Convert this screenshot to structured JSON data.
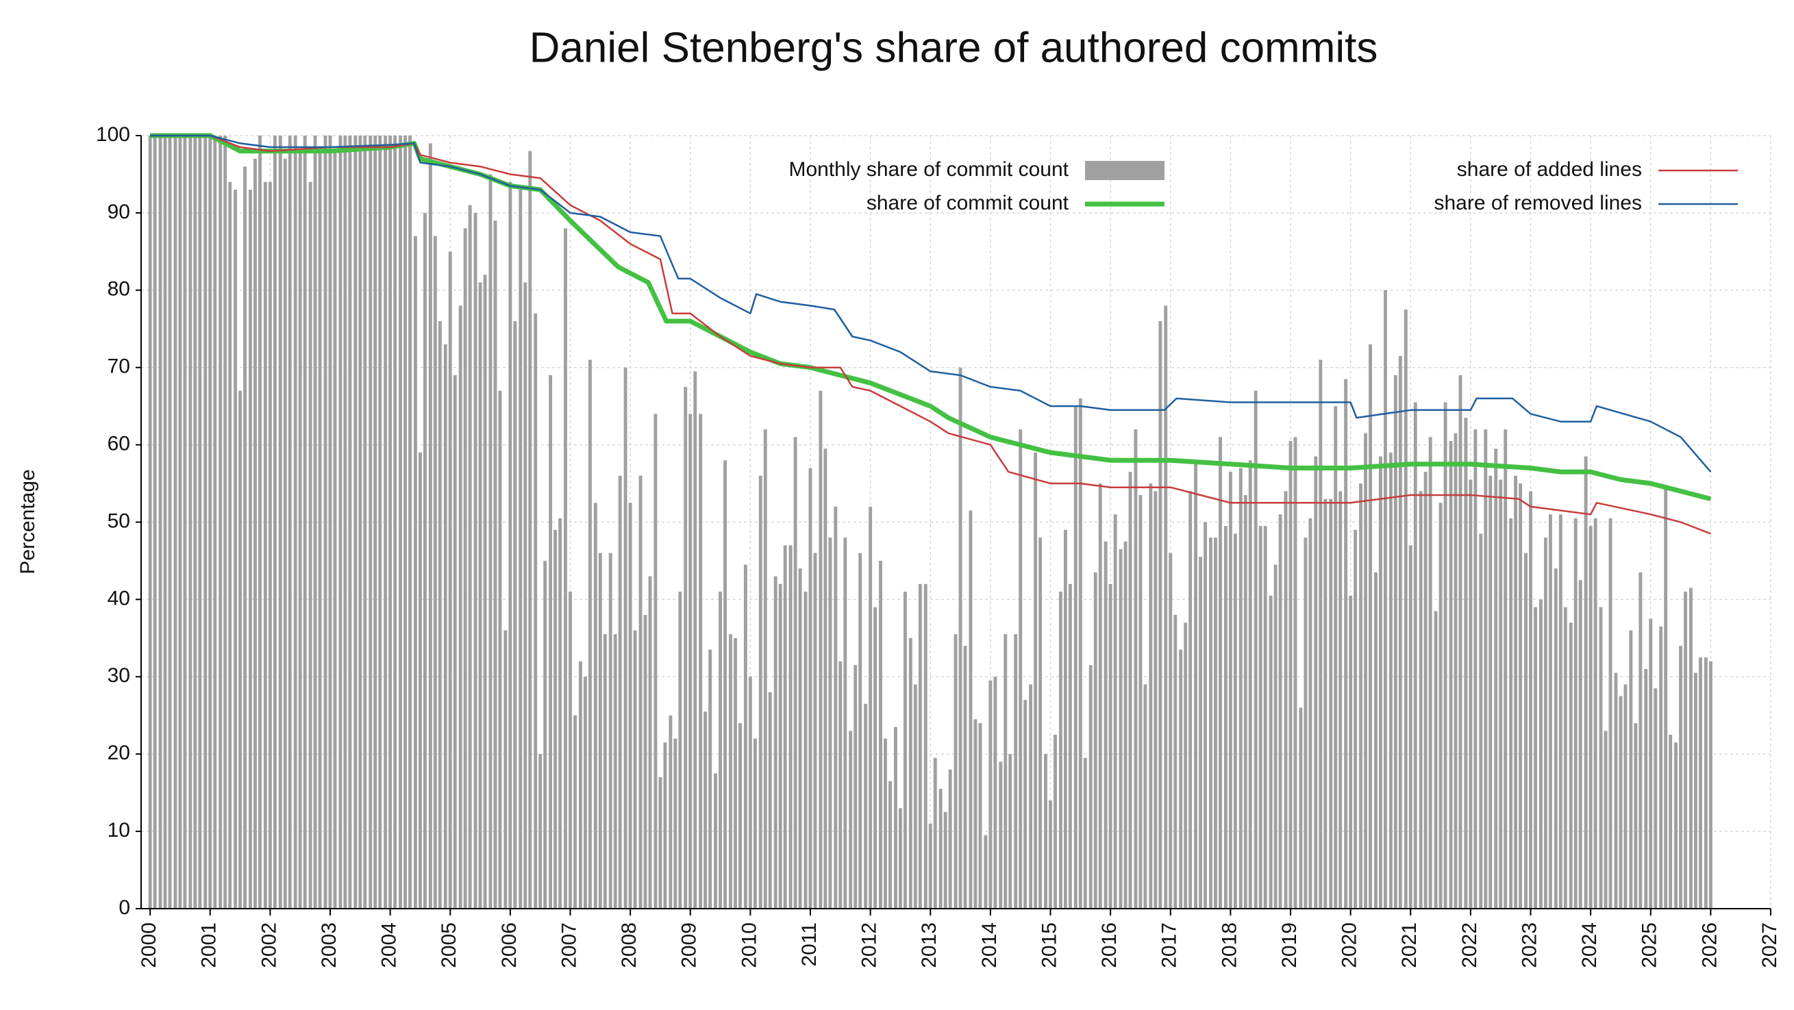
{
  "chart_data": {
    "type": "bar",
    "title": "Daniel Stenberg's share of authored commits",
    "y_label": "Percentage",
    "xlim": [
      1999.85,
      2027
    ],
    "ylim": [
      0,
      100
    ],
    "xticks": [
      2000,
      2001,
      2002,
      2003,
      2004,
      2005,
      2006,
      2007,
      2008,
      2009,
      2010,
      2011,
      2012,
      2013,
      2014,
      2015,
      2016,
      2017,
      2018,
      2019,
      2020,
      2021,
      2022,
      2023,
      2024,
      2025,
      2026,
      2027
    ],
    "yticks": [
      0,
      10,
      20,
      30,
      40,
      50,
      60,
      70,
      80,
      90,
      100
    ],
    "grid": true,
    "series": [
      {
        "name": "Monthly share of commit count",
        "type": "bar",
        "color": "#a0a0a0",
        "x": [
          2000,
          2000.08,
          2000.17,
          2000.25,
          2000.33,
          2000.42,
          2000.5,
          2000.58,
          2000.67,
          2000.75,
          2000.83,
          2000.92,
          2001,
          2001.08,
          2001.17,
          2001.25,
          2001.33,
          2001.42,
          2001.5,
          2001.58,
          2001.67,
          2001.75,
          2001.83,
          2001.92,
          2002,
          2002.08,
          2002.17,
          2002.25,
          2002.33,
          2002.42,
          2002.5,
          2002.58,
          2002.67,
          2002.75,
          2002.83,
          2002.92,
          2003,
          2003.08,
          2003.17,
          2003.25,
          2003.33,
          2003.42,
          2003.5,
          2003.58,
          2003.67,
          2003.75,
          2003.83,
          2003.92,
          2004,
          2004.08,
          2004.17,
          2004.25,
          2004.33,
          2004.42,
          2004.5,
          2004.58,
          2004.67,
          2004.75,
          2004.83,
          2004.92,
          2005,
          2005.08,
          2005.17,
          2005.25,
          2005.33,
          2005.42,
          2005.5,
          2005.58,
          2005.67,
          2005.75,
          2005.83,
          2005.92,
          2006,
          2006.08,
          2006.17,
          2006.25,
          2006.33,
          2006.42,
          2006.5,
          2006.58,
          2006.67,
          2006.75,
          2006.83,
          2006.92,
          2007,
          2007.08,
          2007.17,
          2007.25,
          2007.33,
          2007.42,
          2007.5,
          2007.58,
          2007.67,
          2007.75,
          2007.83,
          2007.92,
          2008,
          2008.08,
          2008.17,
          2008.25,
          2008.33,
          2008.42,
          2008.5,
          2008.58,
          2008.67,
          2008.75,
          2008.83,
          2008.92,
          2009,
          2009.08,
          2009.17,
          2009.25,
          2009.33,
          2009.42,
          2009.5,
          2009.58,
          2009.67,
          2009.75,
          2009.83,
          2009.92,
          2010,
          2010.08,
          2010.17,
          2010.25,
          2010.33,
          2010.42,
          2010.5,
          2010.58,
          2010.67,
          2010.75,
          2010.83,
          2010.92,
          2011,
          2011.08,
          2011.17,
          2011.25,
          2011.33,
          2011.42,
          2011.5,
          2011.58,
          2011.67,
          2011.75,
          2011.83,
          2011.92,
          2012,
          2012.08,
          2012.17,
          2012.25,
          2012.33,
          2012.42,
          2012.5,
          2012.58,
          2012.67,
          2012.75,
          2012.83,
          2012.92,
          2013,
          2013.08,
          2013.17,
          2013.25,
          2013.33,
          2013.42,
          2013.5,
          2013.58,
          2013.67,
          2013.75,
          2013.83,
          2013.92,
          2014,
          2014.08,
          2014.17,
          2014.25,
          2014.33,
          2014.42,
          2014.5,
          2014.58,
          2014.67,
          2014.75,
          2014.83,
          2014.92,
          2015,
          2015.08,
          2015.17,
          2015.25,
          2015.33,
          2015.42,
          2015.5,
          2015.58,
          2015.67,
          2015.75,
          2015.83,
          2015.92,
          2016,
          2016.08,
          2016.17,
          2016.25,
          2016.33,
          2016.42,
          2016.5,
          2016.58,
          2016.67,
          2016.75,
          2016.83,
          2016.92,
          2017,
          2017.08,
          2017.17,
          2017.25,
          2017.33,
          2017.42,
          2017.5,
          2017.58,
          2017.67,
          2017.75,
          2017.83,
          2017.92,
          2018,
          2018.08,
          2018.17,
          2018.25,
          2018.33,
          2018.42,
          2018.5,
          2018.58,
          2018.67,
          2018.75,
          2018.83,
          2018.92,
          2019,
          2019.08,
          2019.17,
          2019.25,
          2019.33,
          2019.42,
          2019.5,
          2019.58,
          2019.67,
          2019.75,
          2019.83,
          2019.92,
          2020,
          2020.08,
          2020.17,
          2020.25,
          2020.33,
          2020.42,
          2020.5,
          2020.58,
          2020.67,
          2020.75,
          2020.83,
          2020.92,
          2021,
          2021.08,
          2021.17,
          2021.25,
          2021.33,
          2021.42,
          2021.5,
          2021.58,
          2021.67,
          2021.75,
          2021.83,
          2021.92,
          2022,
          2022.08,
          2022.17,
          2022.25,
          2022.33,
          2022.42,
          2022.5,
          2022.58,
          2022.67,
          2022.75,
          2022.83,
          2022.92,
          2023,
          2023.08,
          2023.17,
          2023.25,
          2023.33,
          2023.42,
          2023.5,
          2023.58,
          2023.67,
          2023.75,
          2023.83,
          2023.92,
          2024,
          2024.08,
          2024.17,
          2024.25,
          2024.33,
          2024.42,
          2024.5,
          2024.58,
          2024.67,
          2024.75,
          2024.83,
          2024.92,
          2025,
          2025.08,
          2025.17,
          2025.25,
          2025.33,
          2025.42,
          2025.5,
          2025.58,
          2025.67,
          2025.75,
          2025.83,
          2025.92,
          2026
        ],
        "values": [
          100,
          100,
          100,
          100,
          100,
          100,
          100,
          100,
          100,
          100,
          100,
          100,
          100,
          100,
          100,
          100,
          94,
          93,
          67,
          96,
          93,
          97,
          100,
          94,
          94,
          100,
          100,
          97,
          100,
          100,
          98,
          100,
          94,
          100,
          98,
          100,
          100,
          98,
          100,
          100,
          100,
          100,
          100,
          100,
          100,
          100,
          100,
          100,
          100,
          100,
          100,
          100,
          100,
          87,
          59,
          90,
          99,
          87,
          76,
          73,
          85,
          69,
          78,
          88,
          91,
          90,
          81,
          82,
          95,
          89,
          67,
          36,
          94,
          76,
          93,
          81,
          98,
          77,
          20,
          45,
          69,
          49,
          50.5,
          88,
          41,
          25,
          32,
          30,
          71,
          52.5,
          46,
          35.5,
          46,
          35.5,
          56,
          70,
          52.5,
          36,
          56,
          38,
          43,
          64,
          17,
          21.5,
          25,
          22,
          41,
          67.5,
          64,
          69.5,
          64,
          25.5,
          33.5,
          17.5,
          41,
          58,
          35.5,
          35,
          24,
          44.5,
          30,
          22,
          56,
          62,
          28,
          43,
          42,
          47,
          47,
          61,
          44,
          41,
          57,
          46,
          67,
          59.5,
          48,
          52,
          32,
          48,
          23,
          31.5,
          46,
          26.5,
          52,
          39,
          45,
          22,
          16.5,
          23.5,
          13,
          41,
          35,
          29,
          42,
          42,
          11,
          19.5,
          15.5,
          12.5,
          18,
          35.5,
          70,
          34,
          51.5,
          24.5,
          24,
          9.5,
          29.5,
          30,
          19,
          35.5,
          20,
          35.5,
          62,
          27,
          29,
          59,
          48,
          20,
          14,
          22.5,
          41,
          49,
          42,
          65,
          66,
          19.5,
          31.5,
          43.5,
          55,
          47.5,
          42,
          51,
          46.5,
          47.5,
          56.5,
          62,
          53.5,
          29,
          55,
          54,
          76,
          78,
          46,
          38,
          33.5,
          37,
          54,
          58,
          45.5,
          50,
          48,
          48,
          61,
          49.5,
          56.5,
          48.5,
          57,
          53.5,
          58,
          67,
          49.5,
          49.5,
          40.5,
          44.5,
          51,
          54,
          60.5,
          61,
          26,
          48,
          50.5,
          58.5,
          71,
          53,
          53,
          65,
          54,
          68.5,
          40.5,
          49,
          55,
          61.5,
          73,
          43.5,
          58.5,
          80,
          59,
          69,
          71.5,
          77.5,
          47,
          65.5,
          54,
          56.5,
          61,
          38.5,
          52.5,
          65.5,
          60.5,
          61.5,
          69,
          63.5,
          55.5,
          62,
          48.5,
          62,
          56,
          59.5,
          55.5,
          62,
          50.5,
          56,
          55,
          46,
          54,
          39,
          40,
          48,
          51,
          44,
          51,
          39,
          37,
          50.5,
          42.5,
          58.5,
          49.5,
          50.5,
          39,
          23,
          50.5,
          30.5,
          27.5,
          29,
          36,
          24,
          43.5,
          31,
          37.5,
          28.5,
          36.5,
          54.5,
          22.5,
          21.5,
          34,
          41,
          41.5,
          30.5,
          32.5,
          32.5,
          32
        ]
      },
      {
        "name": "share of commit count",
        "type": "line",
        "color": "#44c043",
        "x": [
          2000,
          2001,
          2001.5,
          2002,
          2003,
          2004,
          2004.4,
          2004.5,
          2005,
          2005.5,
          2006,
          2006.5,
          2007,
          2007.4,
          2007.8,
          2008.3,
          2008.6,
          2009,
          2009.5,
          2010,
          2010.5,
          2011,
          2011.5,
          2012,
          2012.5,
          2013,
          2013.3,
          2014,
          2014.5,
          2015,
          2015.5,
          2016,
          2017,
          2018,
          2019,
          2020,
          2021,
          2022,
          2023,
          2023.5,
          2024,
          2024.5,
          2025,
          2025.5,
          2026
        ],
        "values": [
          100,
          100,
          98,
          98,
          98,
          98.5,
          99,
          97,
          96,
          95,
          93.5,
          93,
          89,
          86,
          83,
          81,
          76,
          76,
          74,
          72,
          70.5,
          70,
          69,
          68,
          66.5,
          65,
          63.5,
          61,
          60,
          59,
          58.5,
          58,
          58,
          57.5,
          57,
          57,
          57.5,
          57.5,
          57,
          56.5,
          56.5,
          55.5,
          55,
          54,
          53
        ]
      },
      {
        "name": "share of added lines",
        "type": "line",
        "color": "#c83c3c",
        "x": [
          2000,
          2001,
          2001.5,
          2002,
          2003,
          2004,
          2004.4,
          2004.5,
          2005,
          2005.5,
          2006,
          2006.5,
          2007,
          2007.5,
          2008,
          2008.5,
          2008.7,
          2009,
          2009.5,
          2010,
          2010.5,
          2011,
          2011.5,
          2011.7,
          2012,
          2012.5,
          2013,
          2013.3,
          2014,
          2014.3,
          2015,
          2015.5,
          2016,
          2017,
          2017.5,
          2018,
          2019,
          2020,
          2021,
          2022,
          2022.8,
          2023,
          2024,
          2024.1,
          2025,
          2025.5,
          2026
        ],
        "values": [
          100,
          100,
          98.5,
          98,
          98.5,
          98.5,
          99,
          97.5,
          96.5,
          96,
          95,
          94.5,
          91,
          89,
          86,
          84,
          77,
          77,
          74,
          71.5,
          70.5,
          70,
          70,
          67.5,
          67,
          65,
          63,
          61.5,
          60,
          56.5,
          55,
          55,
          54.5,
          54.5,
          53.5,
          52.5,
          52.5,
          52.5,
          53.5,
          53.5,
          53,
          52,
          51,
          52.5,
          51,
          50,
          48.5
        ]
      },
      {
        "name": "share of removed lines",
        "type": "line",
        "color": "#1f5f9f",
        "x": [
          2000,
          2001,
          2001.5,
          2002,
          2003,
          2004,
          2004.4,
          2004.5,
          2005,
          2005.5,
          2006,
          2006.5,
          2007,
          2007.5,
          2008,
          2008.5,
          2008.8,
          2009,
          2009.5,
          2010,
          2010.1,
          2010.5,
          2011,
          2011.4,
          2011.7,
          2012,
          2012.5,
          2013,
          2013.5,
          2014,
          2014.5,
          2015,
          2015.5,
          2016,
          2016.9,
          2017.1,
          2018,
          2019,
          2020,
          2020.1,
          2021,
          2022,
          2022.1,
          2022.7,
          2023,
          2023.5,
          2024,
          2024.1,
          2025,
          2025.5,
          2026
        ],
        "values": [
          100,
          100,
          99,
          98.5,
          98.5,
          98.8,
          99,
          96.5,
          96,
          95,
          93.5,
          93,
          90,
          89.5,
          87.5,
          87,
          81.5,
          81.5,
          79,
          77,
          79.5,
          78.5,
          78,
          77.5,
          74,
          73.5,
          72,
          69.5,
          69,
          67.5,
          67,
          65,
          65,
          64.5,
          64.5,
          66,
          65.5,
          65.5,
          65.5,
          63.5,
          64.5,
          64.5,
          66,
          66,
          64,
          63,
          63,
          65,
          63,
          61,
          56.5
        ]
      }
    ]
  }
}
